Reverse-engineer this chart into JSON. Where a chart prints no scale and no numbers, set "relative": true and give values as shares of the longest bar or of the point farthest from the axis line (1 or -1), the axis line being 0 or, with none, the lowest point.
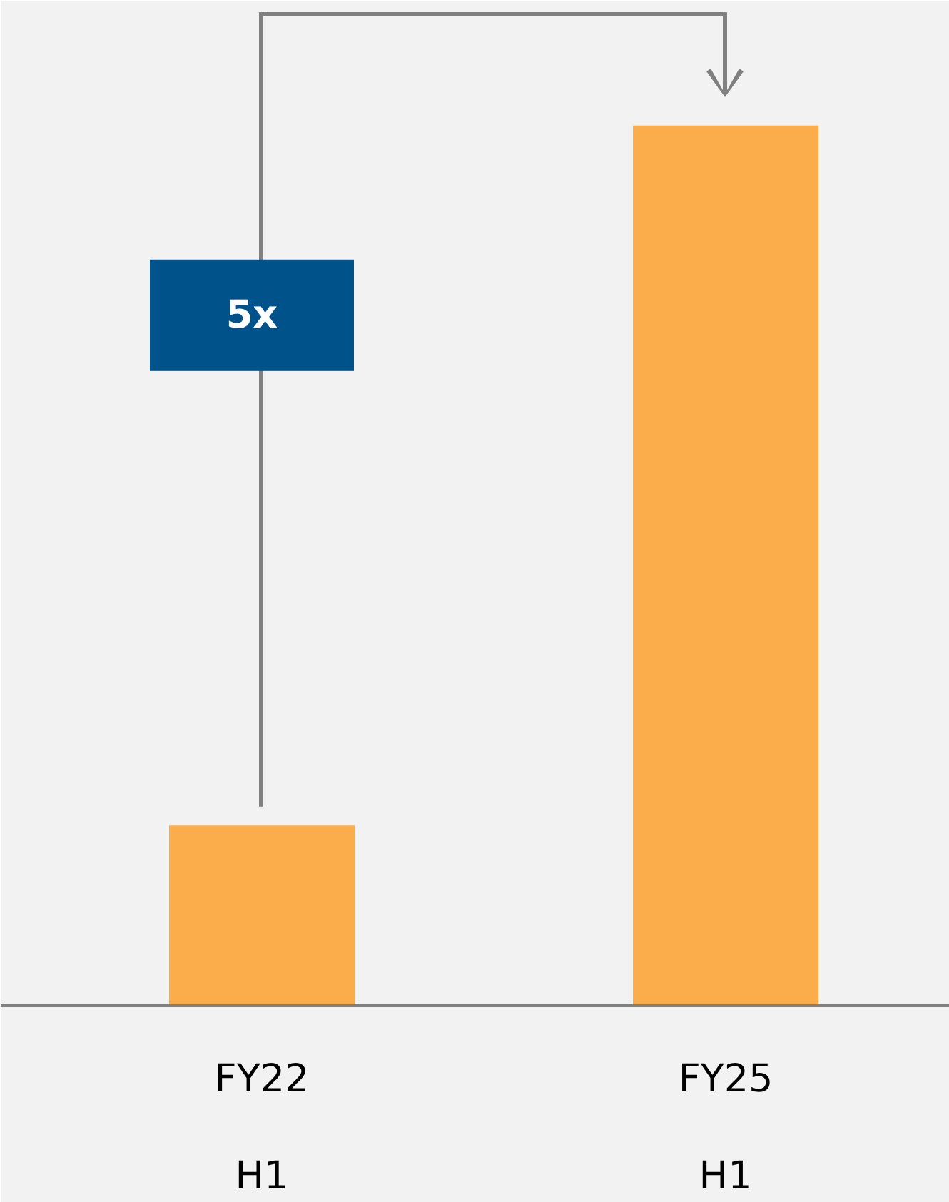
{
  "chart_data": {
    "type": "bar",
    "relative": true,
    "categories": [
      "FY22\nH1",
      "FY25\nH1"
    ],
    "values": [
      0.205,
      1
    ],
    "color": "#fbac4b",
    "annotations": [
      "5x"
    ]
  }
}
